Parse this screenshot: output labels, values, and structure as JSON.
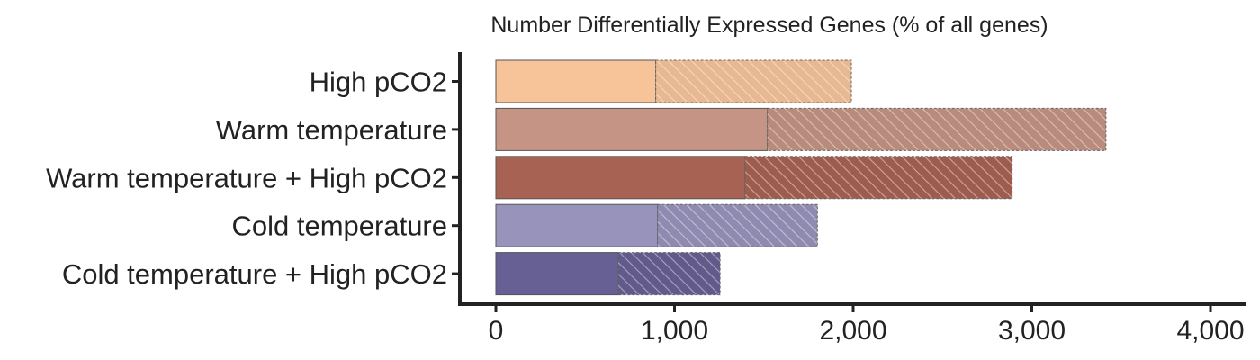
{
  "chart_data": {
    "type": "bar",
    "orientation": "horizontal",
    "stacked": true,
    "title": "Number Differentially Expressed Genes (% of all genes)",
    "categories": [
      "High pCO2",
      "Warm temperature",
      "Warm temperature + High pCO2",
      "Cold temperature",
      "Cold temperature + High pCO2"
    ],
    "series": [
      {
        "style": "solid",
        "values": [
          895,
          1520,
          1395,
          905,
          685
        ]
      },
      {
        "style": "hatched",
        "values": [
          1095,
          1895,
          1495,
          895,
          570
        ]
      }
    ],
    "totals": [
      1990,
      3415,
      2890,
      1800,
      1255
    ],
    "colors": [
      "#f7c49a",
      "#c59484",
      "#a86253",
      "#9893bb",
      "#676094"
    ],
    "xlim": [
      0,
      4000
    ],
    "xticks": [
      0,
      1000,
      2000,
      3000,
      4000
    ],
    "xtick_labels": [
      "0",
      "1,000",
      "2,000",
      "3,000",
      "4,000"
    ],
    "grid": false,
    "legend": "none"
  }
}
